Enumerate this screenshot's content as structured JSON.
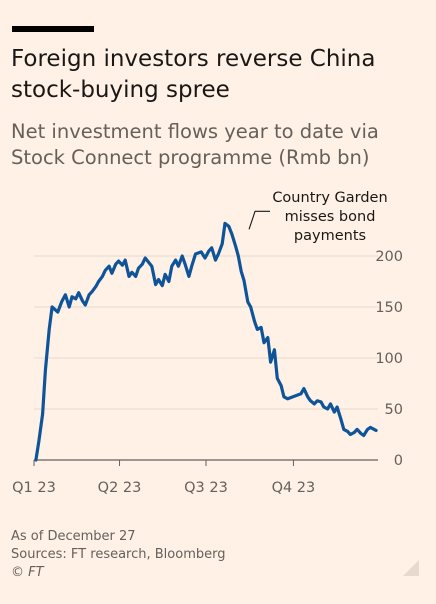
{
  "header": {
    "title": "Foreign investors reverse China stock-buying spree",
    "subtitle": "Net investment flows year to date via Stock Connect programme (Rmb bn)"
  },
  "footer": {
    "note": "As of December 27",
    "sources": "Sources: FT research, Bloomberg",
    "copyright": "© FT"
  },
  "colors": {
    "background": "#fff1e5",
    "series": "#0f5499",
    "grid": "#e6d9ce",
    "baseline": "#66605c",
    "text": "#66605c"
  },
  "chart_data": {
    "type": "line",
    "title": "Foreign investors reverse China stock-buying spree",
    "subtitle": "Net investment flows year to date via Stock Connect programme (Rmb bn)",
    "xlabel": "",
    "ylabel": "",
    "xlim": [
      "2023-01-01",
      "2023-12-29"
    ],
    "ylim": [
      0,
      230
    ],
    "yticks": [
      0,
      50,
      100,
      150,
      200
    ],
    "ytick_labels": [
      "0",
      "50",
      "100",
      "150",
      "200"
    ],
    "xticks": [
      {
        "date": "2023-01-01",
        "label": "Q1 23"
      },
      {
        "date": "2023-04-01",
        "label": "Q2 23"
      },
      {
        "date": "2023-07-01",
        "label": "Q3 23"
      },
      {
        "date": "2023-10-01",
        "label": "Q4 23"
      }
    ],
    "y_axis_position": "right",
    "grid": true,
    "annotations": [
      {
        "text": "Country Garden misses bond payments",
        "x": "2023-08-09",
        "y": 235,
        "lines": [
          "Country Garden",
          "misses bond",
          "payments"
        ]
      }
    ],
    "series": [
      {
        "x": [
          "2023-01-03",
          "2023-01-06",
          "2023-01-10",
          "2023-01-13",
          "2023-01-17",
          "2023-01-20",
          "2023-01-26",
          "2023-01-30",
          "2023-02-03",
          "2023-02-07",
          "2023-02-10",
          "2023-02-14",
          "2023-02-17",
          "2023-02-21",
          "2023-02-24",
          "2023-02-28",
          "2023-03-03",
          "2023-03-07",
          "2023-03-10",
          "2023-03-14",
          "2023-03-17",
          "2023-03-21",
          "2023-03-24",
          "2023-03-28",
          "2023-03-31",
          "2023-04-04",
          "2023-04-07",
          "2023-04-11",
          "2023-04-14",
          "2023-04-18",
          "2023-04-21",
          "2023-04-25",
          "2023-04-28",
          "2023-05-05",
          "2023-05-09",
          "2023-05-12",
          "2023-05-16",
          "2023-05-19",
          "2023-05-23",
          "2023-05-26",
          "2023-05-30",
          "2023-06-02",
          "2023-06-06",
          "2023-06-09",
          "2023-06-13",
          "2023-06-16",
          "2023-06-20",
          "2023-06-26",
          "2023-06-30",
          "2023-07-04",
          "2023-07-07",
          "2023-07-11",
          "2023-07-14",
          "2023-07-18",
          "2023-07-21",
          "2023-07-25",
          "2023-07-28",
          "2023-08-01",
          "2023-08-04",
          "2023-08-07",
          "2023-08-10",
          "2023-08-14",
          "2023-08-17",
          "2023-08-21",
          "2023-08-24",
          "2023-08-28",
          "2023-08-31",
          "2023-09-04",
          "2023-09-07",
          "2023-09-11",
          "2023-09-14",
          "2023-09-18",
          "2023-09-21",
          "2023-09-25",
          "2023-10-09",
          "2023-10-12",
          "2023-10-16",
          "2023-10-19",
          "2023-10-23",
          "2023-10-26",
          "2023-10-30",
          "2023-11-02",
          "2023-11-06",
          "2023-11-09",
          "2023-11-13",
          "2023-11-16",
          "2023-11-20",
          "2023-11-23",
          "2023-11-27",
          "2023-11-30",
          "2023-12-04",
          "2023-12-07",
          "2023-12-11",
          "2023-12-14",
          "2023-12-18",
          "2023-12-21",
          "2023-12-27"
        ],
        "values": [
          0,
          18,
          45,
          88,
          128,
          150,
          145,
          155,
          162,
          150,
          160,
          158,
          164,
          156,
          152,
          162,
          165,
          170,
          175,
          180,
          186,
          190,
          183,
          192,
          195,
          191,
          196,
          180,
          184,
          180,
          188,
          192,
          198,
          190,
          172,
          177,
          171,
          182,
          175,
          190,
          196,
          190,
          200,
          192,
          180,
          190,
          202,
          204,
          198,
          205,
          208,
          196,
          202,
          212,
          232,
          229,
          222,
          210,
          200,
          185,
          176,
          155,
          150,
          136,
          128,
          130,
          115,
          120,
          96,
          108,
          80,
          73,
          62,
          60,
          65,
          70,
          62,
          58,
          55,
          58,
          57,
          52,
          50,
          55,
          47,
          52,
          40,
          30,
          28,
          25,
          27,
          30,
          26,
          24,
          30,
          32,
          29
        ]
      }
    ]
  }
}
